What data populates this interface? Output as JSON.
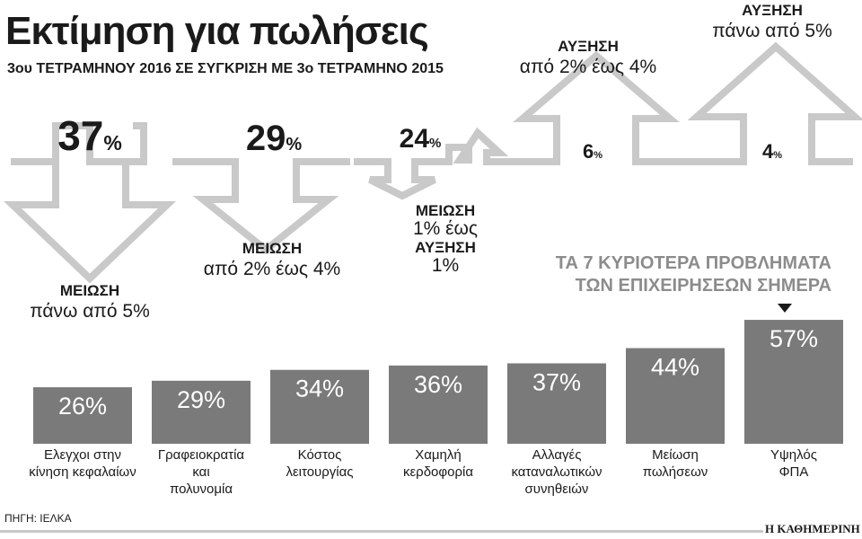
{
  "title": "Εκτίμηση για πωλήσεις",
  "subtitle": "3ου ΤΕΤΡΑΜΗΝΟΥ 2016 ΣΕ ΣΥΓΚΡΙΣΗ ΜΕ 3ο ΤΕΤΡΑΜΗΝΟ 2015",
  "colors": {
    "arrow": "#c9c9c9",
    "bar": "#7a7a7a",
    "bar_text": "#ffffff",
    "text": "#1a1a1a",
    "subtle": "#8c8c8c"
  },
  "chart_data": [
    {
      "type": "pictogram",
      "title": "Εκτίμηση για πωλήσεις",
      "subtitle": "3ου ΤΕΤΡΑΜΗΝΟΥ 2016 ΣΕ ΣΥΓΚΡΙΣΗ ΜΕ 3ο ΤΕΤΡΑΜΗΝΟ 2015",
      "unit": "%",
      "categories": [
        {
          "value": 37,
          "direction": "down",
          "label_head": "ΜΕΙΩΣΗ",
          "label_body": "πάνω από 5%"
        },
        {
          "value": 29,
          "direction": "down",
          "label_head": "ΜΕΙΩΣΗ",
          "label_body": "από 2% έως 4%"
        },
        {
          "value": 24,
          "direction": "both",
          "label_lines": [
            {
              "text": "ΜΕΙΩΣΗ",
              "bold": true
            },
            {
              "text": "1% έως",
              "bold": false
            },
            {
              "text": "ΑΥΞΗΣΗ",
              "bold": true
            },
            {
              "text": "1%",
              "bold": false
            }
          ]
        },
        {
          "value": 6,
          "direction": "up",
          "label_head": "ΑΥΞΗΣΗ",
          "label_body": "από 2% έως 4%"
        },
        {
          "value": 4,
          "direction": "up",
          "label_head": "ΑΥΞΗΣΗ",
          "label_body": "πάνω από 5%"
        }
      ]
    },
    {
      "type": "bar",
      "title": "ΤΑ 7 ΚΥΡΙΟΤΕΡΑ ΠΡΟΒΛΗΜΑΤΑ ΤΩΝ ΕΠΙΧΕΙΡΗΣΕΩΝ ΣΗΜΕΡΑ",
      "title_lines": [
        "ΤΑ 7 ΚΥΡΙΟΤΕΡΑ ΠΡΟΒΛΗΜΑΤΑ",
        "ΤΩΝ ΕΠΙΧΕΙΡΗΣΕΩΝ ΣΗΜΕΡΑ"
      ],
      "categories": [
        "Ελεγχοι στην\nκίνηση κεφαλαίων",
        "Γραφειοκρατία\nκαι\nπολυνομία",
        "Κόστος\nλειτουργίας",
        "Χαμηλή\nκερδοφορία",
        "Αλλαγές\nκαταναλωτικών\nσυνηθειών",
        "Μείωση\nπωλήσεων",
        "Υψηλός\nΦΠΑ"
      ],
      "values": [
        26,
        29,
        34,
        36,
        37,
        44,
        57
      ],
      "value_labels": [
        "26%",
        "29%",
        "34%",
        "36%",
        "37%",
        "44%",
        "57%"
      ],
      "unit": "%",
      "ylim": [
        0,
        60
      ]
    }
  ],
  "source": "ΠΗΓΗ: ΙΕΛΚΑ",
  "brand": "Η ΚΑΘΗΜΕΡΙΝΗ"
}
